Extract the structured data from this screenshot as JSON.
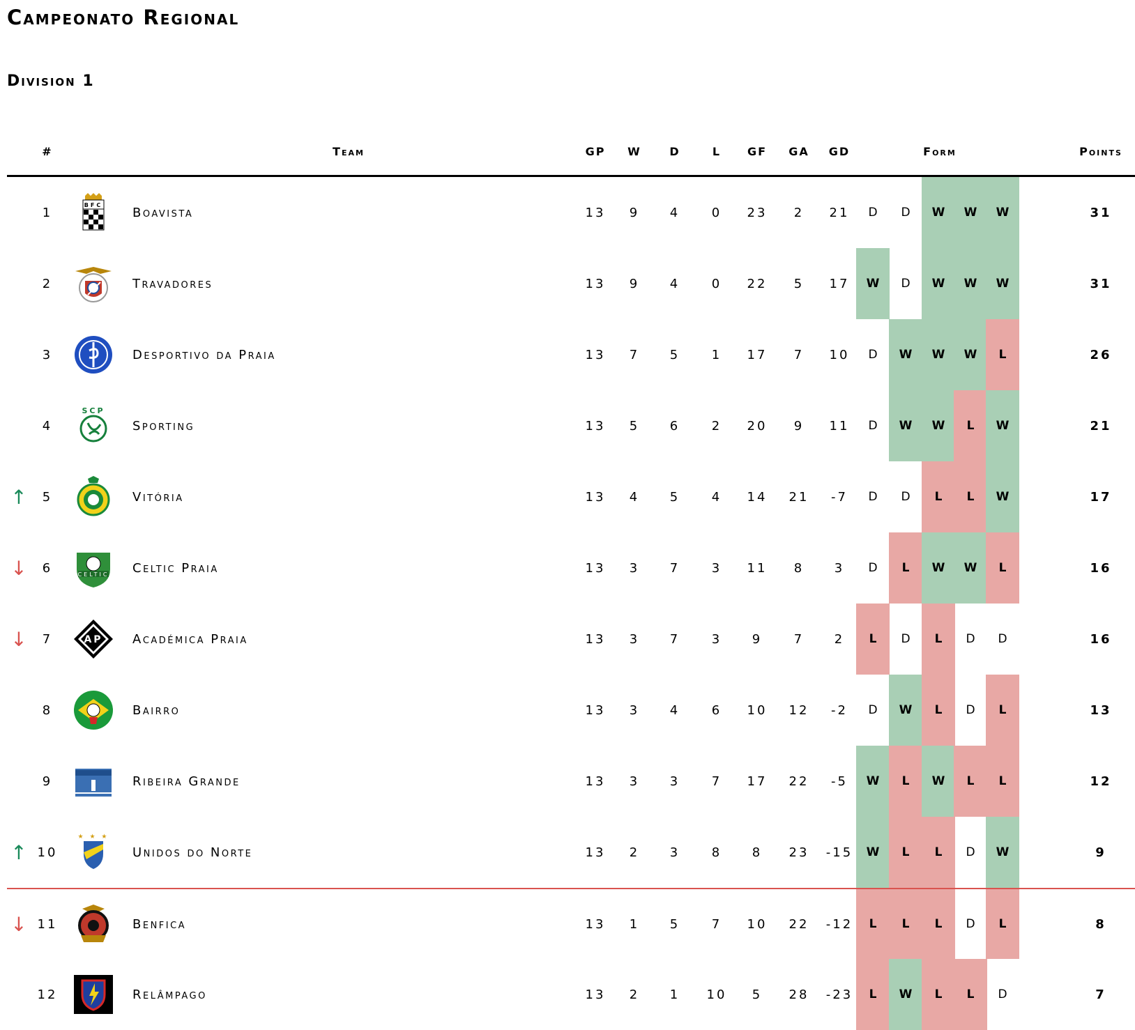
{
  "title": "Campeonato Regional",
  "subtitle": "Division 1",
  "colors": {
    "win": "#a9cfb5",
    "loss": "#e8a8a5",
    "up": "#1a8a5a",
    "down": "#d9534f"
  },
  "headers": {
    "rank": "#",
    "team": "Team",
    "gp": "GP",
    "w": "W",
    "d": "D",
    "l": "L",
    "gf": "GF",
    "ga": "GA",
    "gd": "GD",
    "form": "Form",
    "points": "Points"
  },
  "rows": [
    {
      "move": "",
      "rank": "1",
      "logo": "boavista-crest-icon",
      "team": "Boavista",
      "gp": "13",
      "w": "9",
      "d": "4",
      "l": "0",
      "gf": "23",
      "ga": "2",
      "gd": "21",
      "form": [
        "D",
        "D",
        "W",
        "W",
        "W"
      ],
      "points": "31"
    },
    {
      "move": "",
      "rank": "2",
      "logo": "travadores-crest-icon",
      "team": "Travadores",
      "gp": "13",
      "w": "9",
      "d": "4",
      "l": "0",
      "gf": "22",
      "ga": "5",
      "gd": "17",
      "form": [
        "W",
        "D",
        "W",
        "W",
        "W"
      ],
      "points": "31"
    },
    {
      "move": "",
      "rank": "3",
      "logo": "desportivo-crest-icon",
      "team": "Desportivo da Praia",
      "gp": "13",
      "w": "7",
      "d": "5",
      "l": "1",
      "gf": "17",
      "ga": "7",
      "gd": "10",
      "form": [
        "D",
        "W",
        "W",
        "W",
        "L"
      ],
      "points": "26"
    },
    {
      "move": "",
      "rank": "4",
      "logo": "sporting-crest-icon",
      "team": "Sporting",
      "gp": "13",
      "w": "5",
      "d": "6",
      "l": "2",
      "gf": "20",
      "ga": "9",
      "gd": "11",
      "form": [
        "D",
        "W",
        "W",
        "L",
        "W"
      ],
      "points": "21"
    },
    {
      "move": "up",
      "rank": "5",
      "logo": "vitoria-crest-icon",
      "team": "Vitória",
      "gp": "13",
      "w": "4",
      "d": "5",
      "l": "4",
      "gf": "14",
      "ga": "21",
      "gd": "-7",
      "form": [
        "D",
        "D",
        "L",
        "L",
        "W"
      ],
      "points": "17"
    },
    {
      "move": "down",
      "rank": "6",
      "logo": "celtic-crest-icon",
      "team": "Celtic Praia",
      "gp": "13",
      "w": "3",
      "d": "7",
      "l": "3",
      "gf": "11",
      "ga": "8",
      "gd": "3",
      "form": [
        "D",
        "L",
        "W",
        "W",
        "L"
      ],
      "points": "16"
    },
    {
      "move": "down",
      "rank": "7",
      "logo": "academica-crest-icon",
      "team": "Académica Praia",
      "gp": "13",
      "w": "3",
      "d": "7",
      "l": "3",
      "gf": "9",
      "ga": "7",
      "gd": "2",
      "form": [
        "L",
        "D",
        "L",
        "D",
        "D"
      ],
      "points": "16"
    },
    {
      "move": "",
      "rank": "8",
      "logo": "bairro-crest-icon",
      "team": "Bairro",
      "gp": "13",
      "w": "3",
      "d": "4",
      "l": "6",
      "gf": "10",
      "ga": "12",
      "gd": "-2",
      "form": [
        "D",
        "W",
        "L",
        "D",
        "L"
      ],
      "points": "13"
    },
    {
      "move": "",
      "rank": "9",
      "logo": "ribeira-grande-crest-icon",
      "team": "Ribeira Grande",
      "gp": "13",
      "w": "3",
      "d": "3",
      "l": "7",
      "gf": "17",
      "ga": "22",
      "gd": "-5",
      "form": [
        "W",
        "L",
        "W",
        "L",
        "L"
      ],
      "points": "12"
    },
    {
      "move": "up",
      "rank": "10",
      "logo": "unidos-norte-crest-icon",
      "team": "Unidos do Norte",
      "gp": "13",
      "w": "2",
      "d": "3",
      "l": "8",
      "gf": "8",
      "ga": "23",
      "gd": "-15",
      "form": [
        "W",
        "L",
        "L",
        "D",
        "W"
      ],
      "points": "9"
    },
    {
      "move": "down",
      "rank": "11",
      "logo": "benfica-crest-icon",
      "team": "Benfica",
      "gp": "13",
      "w": "1",
      "d": "5",
      "l": "7",
      "gf": "10",
      "ga": "22",
      "gd": "-12",
      "form": [
        "L",
        "L",
        "L",
        "D",
        "L"
      ],
      "points": "8"
    },
    {
      "move": "",
      "rank": "12",
      "logo": "relampago-crest-icon",
      "team": "Relâmpago",
      "gp": "13",
      "w": "2",
      "d": "1",
      "l": "10",
      "gf": "5",
      "ga": "28",
      "gd": "-23",
      "form": [
        "L",
        "W",
        "L",
        "L",
        "D"
      ],
      "points": "7"
    }
  ]
}
